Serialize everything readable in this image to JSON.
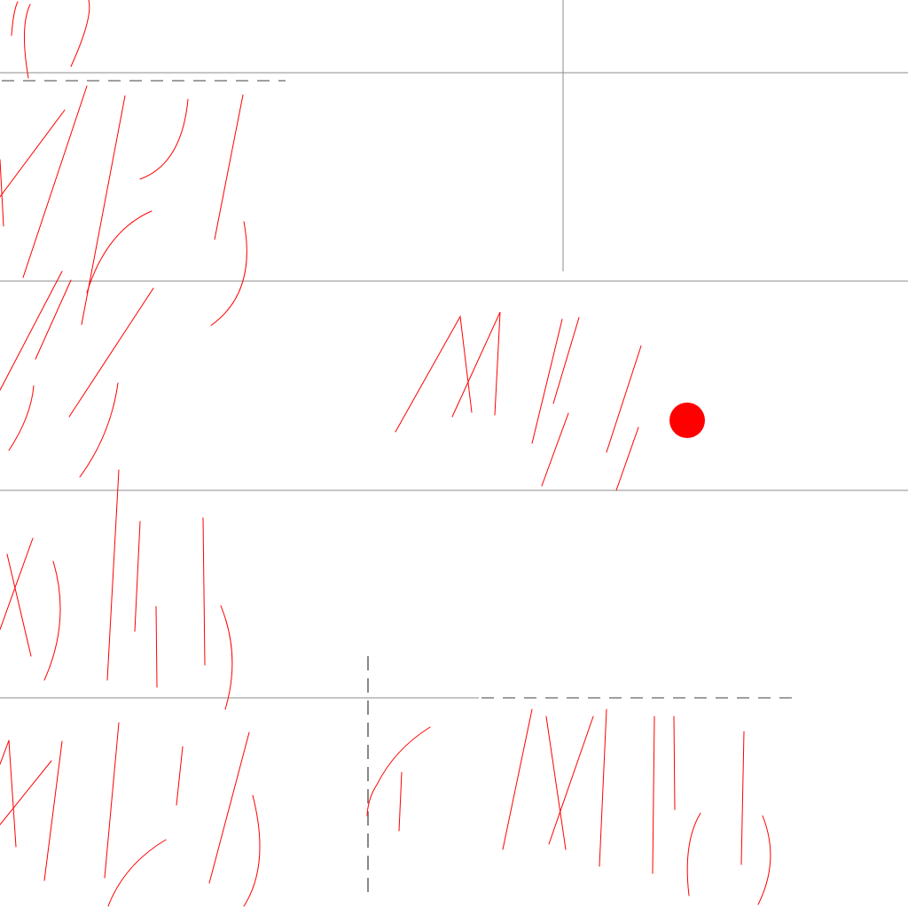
{
  "canvas": {
    "background_color": "#ffffff",
    "guide_line_color": "#8c8c8c",
    "guide_line_style": "solid",
    "dashed_guide_color": "#666666",
    "stroke_color": "#ff0000",
    "pointer": {
      "shape": "filled circle",
      "color": "#ff0000"
    }
  }
}
